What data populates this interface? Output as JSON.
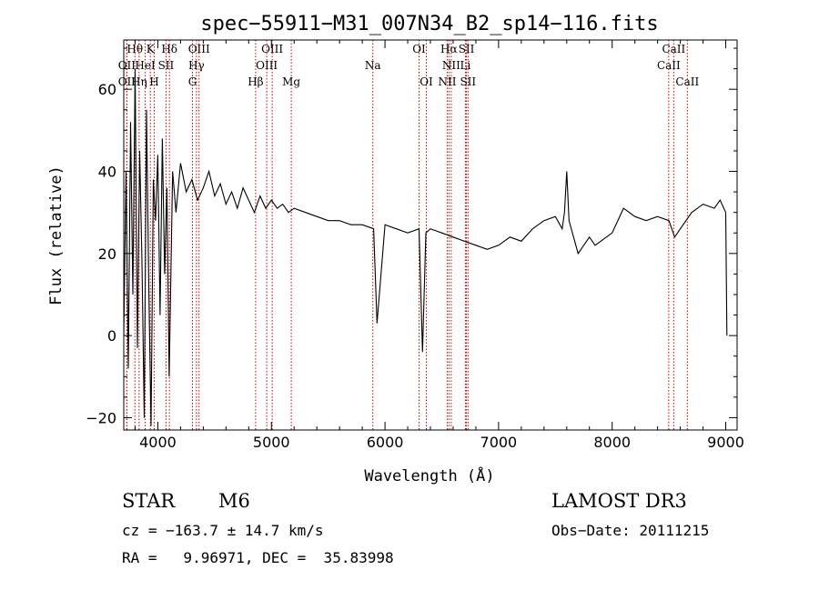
{
  "chart_data": {
    "type": "line",
    "title": "spec−55911−M31_007N34_B2_sp14−116.fits",
    "xlabel": "Wavelength (Å)",
    "ylabel": "Flux (relative)",
    "xlim": [
      3700,
      9100
    ],
    "ylim": [
      -23,
      72
    ],
    "xticks": [
      4000,
      5000,
      6000,
      7000,
      8000,
      9000
    ],
    "yticks": [
      -20,
      0,
      20,
      40,
      60
    ],
    "series": [
      {
        "name": "flux",
        "color": "#000000",
        "x": [
          3700,
          3720,
          3740,
          3760,
          3780,
          3800,
          3820,
          3840,
          3860,
          3880,
          3900,
          3920,
          3940,
          3960,
          3980,
          4000,
          4020,
          4040,
          4060,
          4080,
          4100,
          4130,
          4160,
          4200,
          4250,
          4300,
          4350,
          4400,
          4450,
          4500,
          4550,
          4600,
          4650,
          4700,
          4750,
          4800,
          4850,
          4900,
          4950,
          5000,
          5050,
          5100,
          5150,
          5200,
          5300,
          5400,
          5500,
          5600,
          5700,
          5800,
          5900,
          5930,
          6000,
          6100,
          6200,
          6300,
          6330,
          6360,
          6400,
          6500,
          6600,
          6700,
          6800,
          6900,
          7000,
          7100,
          7200,
          7300,
          7400,
          7500,
          7560,
          7580,
          7600,
          7620,
          7650,
          7700,
          7800,
          7850,
          7900,
          8000,
          8100,
          8200,
          8300,
          8400,
          8500,
          8550,
          8600,
          8700,
          8800,
          8900,
          8950,
          9000,
          9010
        ],
        "y": [
          0,
          40,
          -8,
          52,
          10,
          65,
          -3,
          45,
          18,
          -20,
          55,
          12,
          -22,
          38,
          28,
          44,
          5,
          48,
          15,
          36,
          -10,
          40,
          30,
          42,
          35,
          38,
          33,
          36,
          40,
          34,
          37,
          32,
          35,
          31,
          36,
          33,
          30,
          34,
          31,
          33,
          31,
          32,
          30,
          31,
          30,
          29,
          28,
          28,
          27,
          27,
          26,
          3,
          27,
          26,
          25,
          26,
          -4,
          25,
          26,
          25,
          24,
          23,
          22,
          21,
          22,
          24,
          23,
          26,
          28,
          29,
          26,
          30,
          40,
          28,
          25,
          20,
          24,
          22,
          23,
          25,
          31,
          29,
          28,
          29,
          28,
          24,
          26,
          30,
          32,
          31,
          33,
          30,
          0
        ]
      }
    ],
    "lines_row1": [
      {
        "text": "Hθ",
        "x": 3798
      },
      {
        "text": "K",
        "x": 3934
      },
      {
        "text": "Hδ",
        "x": 4102
      },
      {
        "text": "OIII",
        "x": 4363
      },
      {
        "text": "OIII",
        "x": 5007
      },
      {
        "text": "OI",
        "x": 6300
      },
      {
        "text": "Hα",
        "x": 6563
      },
      {
        "text": "SII",
        "x": 6717
      },
      {
        "text": "CaII",
        "x": 8542
      }
    ],
    "lines_row2": [
      {
        "text": "OII",
        "x": 3727
      },
      {
        "text": "HeI",
        "x": 3889
      },
      {
        "text": "SII",
        "x": 4072
      },
      {
        "text": "Hγ",
        "x": 4340
      },
      {
        "text": "OIII",
        "x": 4959
      },
      {
        "text": "Na",
        "x": 5893
      },
      {
        "text": "NII",
        "x": 6583
      },
      {
        "text": "Li",
        "x": 6708
      },
      {
        "text": "CaII",
        "x": 8498
      }
    ],
    "lines_row3": [
      {
        "text": "OII",
        "x": 3727
      },
      {
        "text": "Hη",
        "x": 3835
      },
      {
        "text": "H",
        "x": 3968
      },
      {
        "text": "G",
        "x": 4305
      },
      {
        "text": "Hβ",
        "x": 4861
      },
      {
        "text": "Mg",
        "x": 5175
      },
      {
        "text": "OI",
        "x": 6364
      },
      {
        "text": "NII",
        "x": 6548
      },
      {
        "text": "SII",
        "x": 6731
      },
      {
        "text": "CaII",
        "x": 8662
      }
    ]
  },
  "info": {
    "class": "STAR",
    "subclass": "M6",
    "survey": "LAMOST DR3",
    "cz": "cz = −163.7 ± 14.7 km/s",
    "obsdate": "Obs−Date: 20111215",
    "radec": "RA =   9.96971, DEC =  35.83998"
  }
}
